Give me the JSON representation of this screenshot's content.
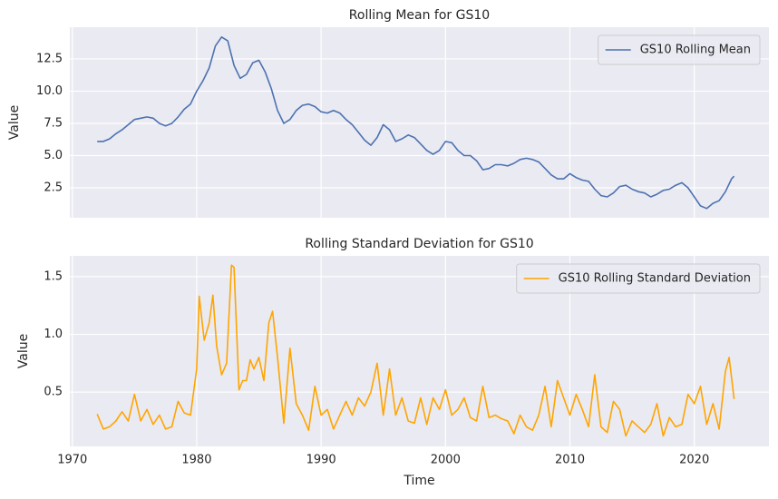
{
  "chart_data": [
    {
      "type": "line",
      "title": "Rolling Mean for GS10",
      "ylabel": "Value",
      "x": [
        1972.0,
        1972.5,
        1973.0,
        1973.5,
        1974.0,
        1974.5,
        1975.0,
        1975.5,
        1976.0,
        1976.5,
        1977.0,
        1977.5,
        1978.0,
        1978.5,
        1979.0,
        1979.5,
        1980.0,
        1980.5,
        1981.0,
        1981.5,
        1982.0,
        1982.5,
        1983.0,
        1983.5,
        1984.0,
        1984.5,
        1985.0,
        1985.5,
        1986.0,
        1986.5,
        1987.0,
        1987.5,
        1988.0,
        1988.5,
        1989.0,
        1989.5,
        1990.0,
        1990.5,
        1991.0,
        1991.5,
        1992.0,
        1992.5,
        1993.0,
        1993.5,
        1994.0,
        1994.5,
        1995.0,
        1995.5,
        1996.0,
        1996.5,
        1997.0,
        1997.5,
        1998.0,
        1998.5,
        1999.0,
        1999.5,
        2000.0,
        2000.5,
        2001.0,
        2001.5,
        2002.0,
        2002.5,
        2003.0,
        2003.5,
        2004.0,
        2004.5,
        2005.0,
        2005.5,
        2006.0,
        2006.5,
        2007.0,
        2007.5,
        2008.0,
        2008.5,
        2009.0,
        2009.5,
        2010.0,
        2010.5,
        2011.0,
        2011.5,
        2012.0,
        2012.5,
        2013.0,
        2013.5,
        2014.0,
        2014.5,
        2015.0,
        2015.5,
        2016.0,
        2016.5,
        2017.0,
        2017.5,
        2018.0,
        2018.5,
        2019.0,
        2019.5,
        2020.0,
        2020.5,
        2021.0,
        2021.5,
        2022.0,
        2022.5,
        2023.0,
        2023.2
      ],
      "series": [
        {
          "name": "GS10 Rolling Mean",
          "color": "#4c72b0",
          "values": [
            6.1,
            6.1,
            6.3,
            6.7,
            7.0,
            7.4,
            7.8,
            7.9,
            8.0,
            7.9,
            7.5,
            7.3,
            7.5,
            8.0,
            8.6,
            9.0,
            10.0,
            10.8,
            11.8,
            13.5,
            14.2,
            13.9,
            12.0,
            11.0,
            11.3,
            12.2,
            12.4,
            11.5,
            10.2,
            8.5,
            7.5,
            7.8,
            8.5,
            8.9,
            9.0,
            8.8,
            8.4,
            8.3,
            8.5,
            8.3,
            7.8,
            7.4,
            6.8,
            6.2,
            5.8,
            6.4,
            7.4,
            7.0,
            6.1,
            6.3,
            6.6,
            6.4,
            5.9,
            5.4,
            5.1,
            5.4,
            6.1,
            6.0,
            5.4,
            5.0,
            5.0,
            4.6,
            3.9,
            4.0,
            4.3,
            4.3,
            4.2,
            4.4,
            4.7,
            4.8,
            4.7,
            4.5,
            4.0,
            3.5,
            3.2,
            3.2,
            3.6,
            3.3,
            3.1,
            3.0,
            2.4,
            1.9,
            1.8,
            2.1,
            2.6,
            2.7,
            2.4,
            2.2,
            2.1,
            1.8,
            2.0,
            2.3,
            2.4,
            2.7,
            2.9,
            2.5,
            1.8,
            1.1,
            0.9,
            1.3,
            1.5,
            2.2,
            3.2,
            3.4
          ]
        }
      ],
      "xlim": [
        1969.8,
        2026.0
      ],
      "xticks": [
        1970,
        1980,
        1990,
        2000,
        2010,
        2020
      ],
      "ylim": [
        0.18,
        14.96
      ],
      "yticks": [
        2.5,
        {
          "value": 5,
          "label": "5.0"
        },
        7.5,
        {
          "value": 10,
          "label": "10.0"
        },
        12.5
      ],
      "grid": true,
      "legend": "upper right"
    },
    {
      "type": "line",
      "title": "Rolling Standard Deviation for GS10",
      "xlabel": "Time",
      "ylabel": "Value",
      "x": [
        1972.0,
        1972.5,
        1973.0,
        1973.5,
        1974.0,
        1974.5,
        1975.0,
        1975.5,
        1976.0,
        1976.5,
        1977.0,
        1977.5,
        1978.0,
        1978.5,
        1979.0,
        1979.5,
        1980.0,
        1980.2,
        1980.6,
        1981.0,
        1981.3,
        1981.6,
        1982.0,
        1982.4,
        1982.8,
        1983.0,
        1983.4,
        1983.7,
        1984.0,
        1984.3,
        1984.6,
        1985.0,
        1985.4,
        1985.8,
        1986.1,
        1986.5,
        1987.0,
        1987.5,
        1988.0,
        1988.5,
        1989.0,
        1989.5,
        1990.0,
        1990.5,
        1991.0,
        1991.5,
        1992.0,
        1992.5,
        1993.0,
        1993.5,
        1994.0,
        1994.5,
        1995.0,
        1995.5,
        1996.0,
        1996.5,
        1997.0,
        1997.5,
        1998.0,
        1998.5,
        1999.0,
        1999.5,
        2000.0,
        2000.5,
        2001.0,
        2001.5,
        2002.0,
        2002.5,
        2003.0,
        2003.5,
        2004.0,
        2004.5,
        2005.0,
        2005.5,
        2006.0,
        2006.5,
        2007.0,
        2007.5,
        2008.0,
        2008.5,
        2009.0,
        2009.5,
        2010.0,
        2010.5,
        2011.0,
        2011.5,
        2012.0,
        2012.5,
        2013.0,
        2013.5,
        2014.0,
        2014.5,
        2015.0,
        2015.5,
        2016.0,
        2016.5,
        2017.0,
        2017.5,
        2018.0,
        2018.5,
        2019.0,
        2019.5,
        2020.0,
        2020.5,
        2021.0,
        2021.5,
        2022.0,
        2022.5,
        2022.8,
        2023.2
      ],
      "series": [
        {
          "name": "GS10 Rolling Standard Deviation",
          "color": "#ffa500",
          "values": [
            0.31,
            0.18,
            0.2,
            0.25,
            0.33,
            0.25,
            0.48,
            0.25,
            0.35,
            0.22,
            0.3,
            0.18,
            0.2,
            0.42,
            0.32,
            0.3,
            0.7,
            1.33,
            0.95,
            1.1,
            1.34,
            0.9,
            0.65,
            0.75,
            1.6,
            1.58,
            0.52,
            0.6,
            0.6,
            0.78,
            0.7,
            0.8,
            0.6,
            1.1,
            1.2,
            0.8,
            0.23,
            0.88,
            0.4,
            0.3,
            0.17,
            0.55,
            0.3,
            0.35,
            0.18,
            0.3,
            0.42,
            0.3,
            0.45,
            0.38,
            0.5,
            0.75,
            0.3,
            0.7,
            0.3,
            0.45,
            0.25,
            0.23,
            0.45,
            0.22,
            0.45,
            0.35,
            0.52,
            0.3,
            0.35,
            0.45,
            0.28,
            0.25,
            0.55,
            0.28,
            0.3,
            0.27,
            0.25,
            0.14,
            0.3,
            0.2,
            0.17,
            0.3,
            0.55,
            0.2,
            0.6,
            0.45,
            0.3,
            0.48,
            0.35,
            0.2,
            0.65,
            0.2,
            0.15,
            0.42,
            0.35,
            0.12,
            0.25,
            0.2,
            0.15,
            0.22,
            0.4,
            0.12,
            0.28,
            0.2,
            0.22,
            0.48,
            0.4,
            0.55,
            0.22,
            0.4,
            0.18,
            0.68,
            0.8,
            0.44
          ]
        }
      ],
      "xlim": [
        1969.8,
        2026.0
      ],
      "xticks": [
        1970,
        1980,
        1990,
        2000,
        2010,
        2020
      ],
      "ylim": [
        0.03,
        1.68
      ],
      "yticks": [
        0.5,
        {
          "value": 1,
          "label": "1.0"
        },
        1.5
      ],
      "grid": true,
      "legend": "upper right"
    }
  ]
}
